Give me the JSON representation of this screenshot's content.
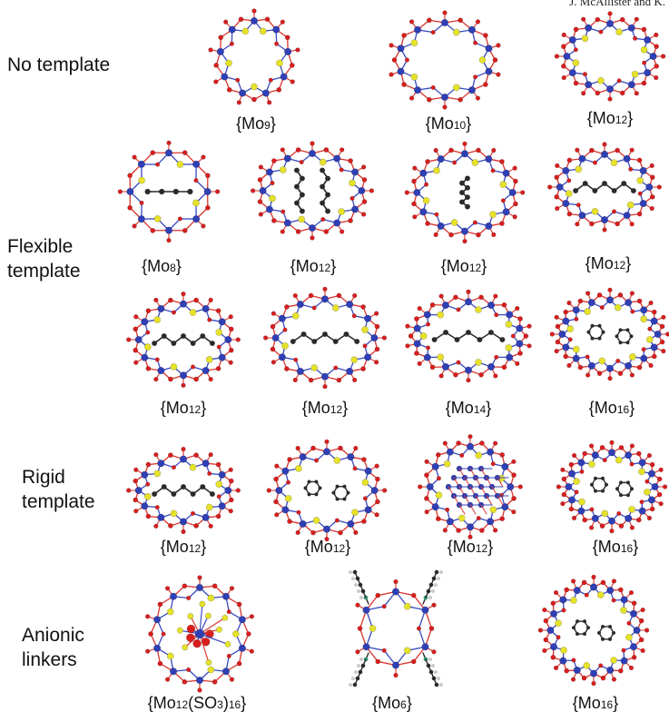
{
  "header": "J. McAllister and K.",
  "categories": {
    "no_template": [
      "No template"
    ],
    "flexible": [
      "Flexible",
      "template"
    ],
    "rigid": [
      "Rigid",
      "template"
    ],
    "anionic": [
      "Anionic",
      "linkers"
    ]
  },
  "structures": [
    {
      "pre": "{Mo",
      "sub": "9",
      "post": "}",
      "group": "no_template",
      "shape": "compact",
      "inner": "none"
    },
    {
      "pre": "{Mo",
      "sub": "10",
      "post": "}",
      "group": "no_template",
      "shape": "ring",
      "inner": "none"
    },
    {
      "pre": "{Mo",
      "sub": "12",
      "post": "}",
      "group": "no_template",
      "shape": "ring",
      "inner": "none"
    },
    {
      "pre": "{Mo",
      "sub": "8",
      "post": "}",
      "group": "flexible",
      "shape": "compact",
      "inner": "bridge"
    },
    {
      "pre": "{Mo",
      "sub": "12",
      "post": "}",
      "group": "flexible",
      "shape": "ring",
      "inner": "double"
    },
    {
      "pre": "{Mo",
      "sub": "12",
      "post": "}",
      "group": "flexible",
      "shape": "ring",
      "inner": "vchain"
    },
    {
      "pre": "{Mo",
      "sub": "12",
      "post": "}",
      "group": "flexible",
      "shape": "ring",
      "inner": "chain"
    },
    {
      "pre": "{Mo",
      "sub": "12",
      "post": "}",
      "group": "flexible",
      "shape": "ring",
      "inner": "chain"
    },
    {
      "pre": "{Mo",
      "sub": "12",
      "post": "}",
      "group": "flexible",
      "shape": "ring",
      "inner": "chain"
    },
    {
      "pre": "{Mo",
      "sub": "14",
      "post": "}",
      "group": "flexible",
      "shape": "ring",
      "inner": "chain"
    },
    {
      "pre": "{Mo",
      "sub": "16",
      "post": "}",
      "group": "flexible",
      "shape": "ring",
      "inner": "rings"
    },
    {
      "pre": "{Mo",
      "sub": "12",
      "post": "}",
      "group": "rigid",
      "shape": "ring",
      "inner": "chain"
    },
    {
      "pre": "{Mo",
      "sub": "12",
      "post": "}",
      "group": "rigid",
      "shape": "ring",
      "inner": "rings"
    },
    {
      "pre": "{Mo",
      "sub": "12",
      "post": "}",
      "group": "rigid",
      "shape": "compact",
      "inner": "hexgrid"
    },
    {
      "pre": "{Mo",
      "sub": "16",
      "post": "}",
      "group": "rigid",
      "shape": "ring",
      "inner": "rings"
    },
    {
      "pre": "{Mo",
      "sub": "12",
      "post": "(SO",
      "sub2": "3",
      "post2": ")",
      "sub3": "16",
      "post3": "}",
      "group": "anionic",
      "shape": "cage",
      "inner": "dense"
    },
    {
      "pre": "{Mo",
      "sub": "6",
      "post": "}",
      "group": "anionic",
      "shape": "square",
      "inner": "arms"
    },
    {
      "pre": "{Mo",
      "sub": "16",
      "post": "}",
      "group": "anionic",
      "shape": "ring",
      "inner": "rings"
    }
  ],
  "colors": {
    "molybdenum": "#2f3fb5",
    "oxygen": "#d81e1e",
    "sulfur": "#e6e22a",
    "carbon": "#2a2a2a",
    "nitrogen": "#2aa87a",
    "hydrogen": "#cfcfcf",
    "bond_red": "#d9352f",
    "bond_blue": "#3a4ac0"
  }
}
